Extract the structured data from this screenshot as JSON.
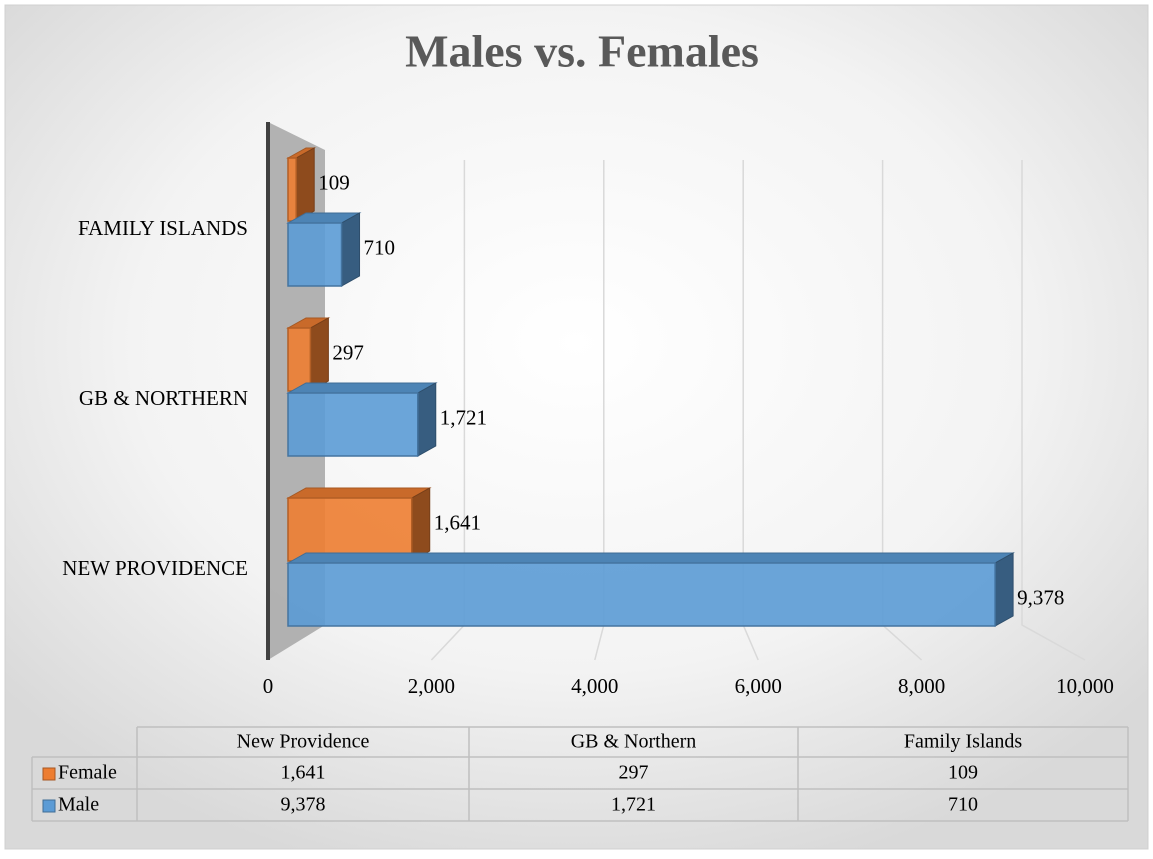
{
  "chart_data": {
    "type": "bar3d_horizontal",
    "title": "Males vs. Females",
    "categories": [
      "NEW PROVIDENCE",
      "GB & NORTHERN",
      "FAMILY ISLANDS"
    ],
    "table_categories": [
      "New Providence",
      "GB & Northern",
      "Family Islands"
    ],
    "series": [
      {
        "name": "Female",
        "color": "#ed7d31",
        "values": [
          1641,
          297,
          109
        ],
        "value_labels": [
          "1,641",
          "297",
          "109"
        ]
      },
      {
        "name": "Male",
        "color": "#5b9bd5",
        "values": [
          9378,
          1721,
          710
        ],
        "value_labels": [
          "9,378",
          "1,721",
          "710"
        ]
      }
    ],
    "xlim": [
      0,
      10000
    ],
    "xticks": [
      0,
      {
        "value": 2000,
        "label": "2,000"
      },
      {
        "value": 4000,
        "label": "4,000"
      },
      {
        "value": 6000,
        "label": "6,000"
      },
      {
        "value": 8000,
        "label": "8,000"
      },
      {
        "value": 10000,
        "label": "10,000"
      }
    ],
    "grid": true
  }
}
